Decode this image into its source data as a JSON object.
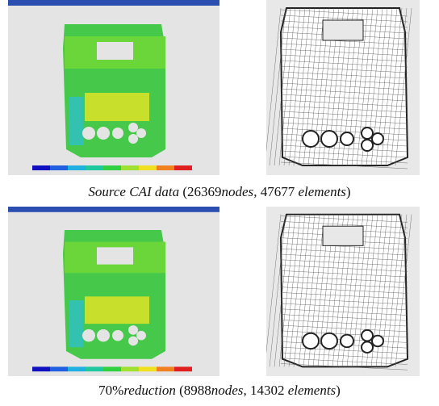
{
  "figure": {
    "rows": [
      {
        "caption": [
          "Source CAI data",
          "(26369",
          "nodes",
          ", 47677",
          "elements",
          ")"
        ]
      },
      {
        "caption": [
          "70%",
          "reduction",
          "(8988",
          "nodes",
          ", 14302",
          "elements",
          ")"
        ]
      }
    ]
  }
}
